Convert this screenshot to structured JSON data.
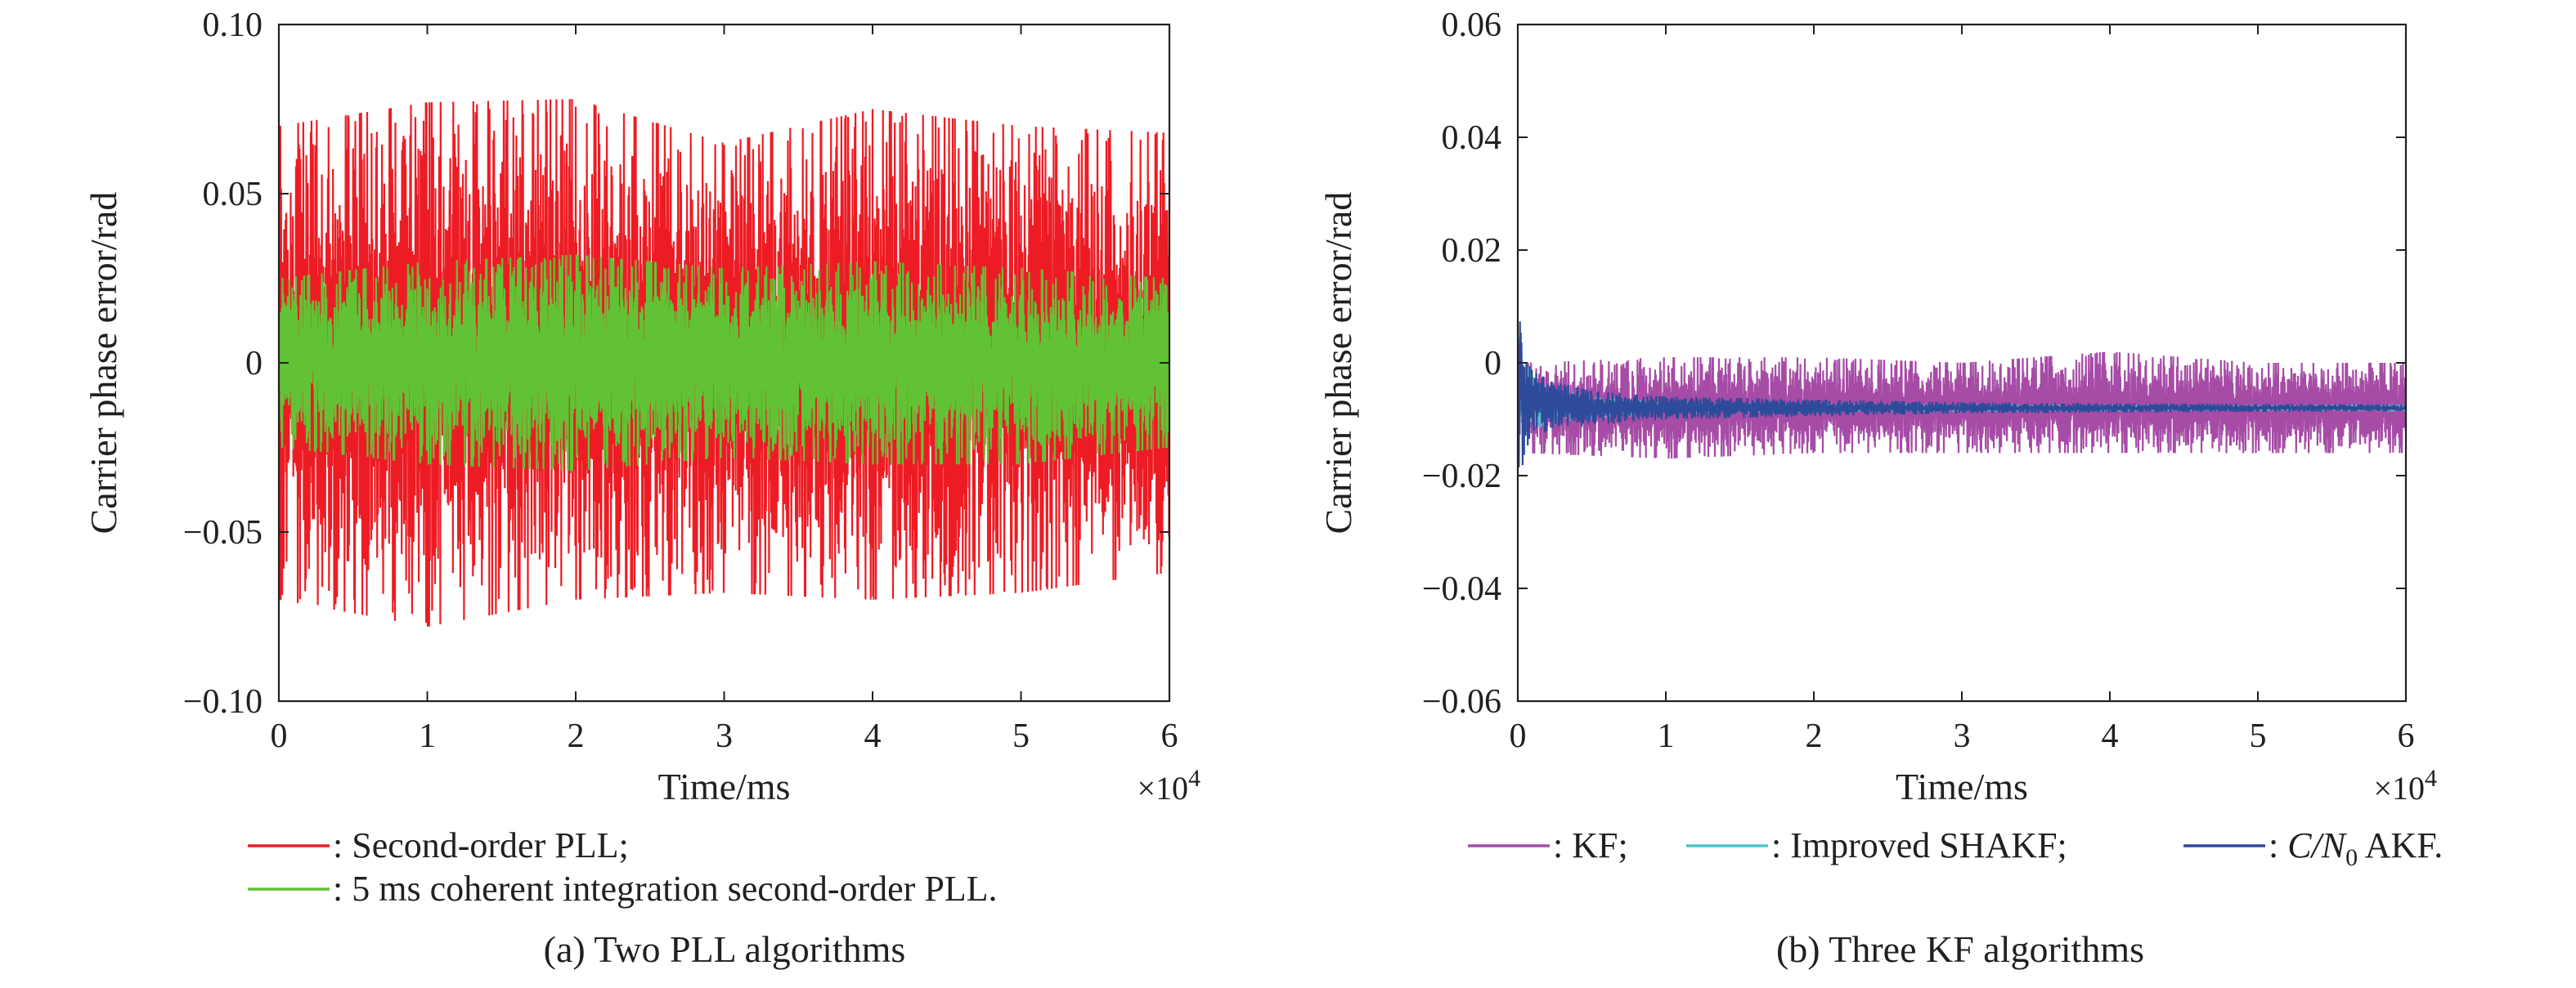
{
  "chart_data": [
    {
      "type": "line",
      "panel_caption": "(a) Two PLL algorithms",
      "xlabel": "Time/ms",
      "ylabel": "Carrier phase error/rad",
      "x_multiplier": "×10",
      "x_multiplier_exp": "4",
      "xlim": [
        0,
        6
      ],
      "ylim": [
        -0.1,
        0.1
      ],
      "xticks": [
        "0",
        "1",
        "2",
        "3",
        "4",
        "5",
        "6"
      ],
      "yticks": [
        "0.10",
        "0.05",
        "0",
        "−0.05",
        "−0.10"
      ],
      "ytick_values": [
        0.1,
        0.05,
        0,
        -0.05,
        -0.1
      ],
      "grid": false,
      "legend_position": "bottom",
      "series": [
        {
          "name": ": Second-order PLL;",
          "color": "#ed1c24",
          "x": [
            0,
            1,
            2,
            3,
            4,
            5,
            6
          ],
          "center": [
            0,
            0,
            0,
            0,
            0,
            0,
            0
          ],
          "upper_envelope": [
            0.07,
            0.077,
            0.078,
            0.065,
            0.075,
            0.07,
            0.068
          ],
          "lower_envelope": [
            -0.07,
            -0.078,
            -0.07,
            -0.068,
            -0.07,
            -0.068,
            -0.062
          ]
        },
        {
          "name": ": 5 ms coherent integration second-order PLL.",
          "color": "#62c235",
          "x": [
            0,
            1,
            2,
            3,
            4,
            5,
            6
          ],
          "center": [
            0,
            0,
            0,
            0,
            0,
            0,
            0
          ],
          "upper_envelope": [
            0.025,
            0.03,
            0.032,
            0.028,
            0.03,
            0.028,
            0.025
          ],
          "lower_envelope": [
            -0.025,
            -0.03,
            -0.032,
            -0.028,
            -0.03,
            -0.03,
            -0.025
          ]
        }
      ]
    },
    {
      "type": "line",
      "panel_caption": "(b) Three KF algorithms",
      "xlabel": "Time/ms",
      "ylabel": "Carrier phase error/rad",
      "x_multiplier": "×10",
      "x_multiplier_exp": "4",
      "xlim": [
        0,
        6
      ],
      "ylim": [
        -0.06,
        0.06
      ],
      "xticks": [
        "0",
        "1",
        "2",
        "3",
        "4",
        "5",
        "6"
      ],
      "yticks": [
        "0.06",
        "0.04",
        "0.02",
        "0",
        "−0.02",
        "−0.04",
        "−0.06"
      ],
      "ytick_values": [
        0.06,
        0.04,
        0.02,
        0,
        -0.02,
        -0.04,
        -0.06
      ],
      "grid": false,
      "legend_position": "bottom",
      "series": [
        {
          "name": ": KF;",
          "color": "#a64ca6",
          "x": [
            0.05,
            1,
            2,
            3,
            4,
            5,
            6
          ],
          "center": [
            -0.008,
            -0.008,
            -0.008,
            -0.008,
            -0.008,
            -0.008,
            -0.008
          ],
          "upper_envelope": [
            0.0,
            0.001,
            0.001,
            0.0,
            0.002,
            0.0,
            0.0
          ],
          "lower_envelope": [
            -0.016,
            -0.017,
            -0.016,
            -0.016,
            -0.016,
            -0.016,
            -0.016
          ]
        },
        {
          "name": ": Improved SHAKF;",
          "color": "#4fc3c8",
          "x": [
            0,
            0.05,
            0.2,
            0.5,
            1,
            2,
            3,
            4,
            5,
            6
          ],
          "center": [
            0,
            -0.005,
            -0.007,
            -0.008,
            -0.008,
            -0.008,
            -0.008,
            -0.008,
            -0.008,
            -0.008
          ],
          "upper_envelope": [
            0.005,
            0.0,
            -0.004,
            -0.006,
            -0.007,
            -0.0072,
            -0.0073,
            -0.0074,
            -0.0074,
            -0.0074
          ],
          "lower_envelope": [
            -0.015,
            -0.012,
            -0.011,
            -0.01,
            -0.009,
            -0.0088,
            -0.0087,
            -0.0086,
            -0.0086,
            -0.0086
          ]
        },
        {
          "name": "AKF.",
          "name_prefix": "C/N",
          "name_subscript": "0",
          "color": "#2e4a9a",
          "x": [
            0,
            0.05,
            0.2,
            0.5,
            1,
            2,
            3,
            4,
            5,
            6
          ],
          "center": [
            0,
            -0.005,
            -0.007,
            -0.008,
            -0.008,
            -0.008,
            -0.008,
            -0.008,
            -0.008,
            -0.008
          ],
          "upper_envelope": [
            0.011,
            0.0,
            -0.003,
            -0.005,
            -0.006,
            -0.0065,
            -0.007,
            -0.0072,
            -0.0073,
            -0.0074
          ],
          "lower_envelope": [
            -0.024,
            -0.015,
            -0.012,
            -0.011,
            -0.01,
            -0.0095,
            -0.009,
            -0.0088,
            -0.0087,
            -0.0086
          ]
        }
      ]
    }
  ]
}
